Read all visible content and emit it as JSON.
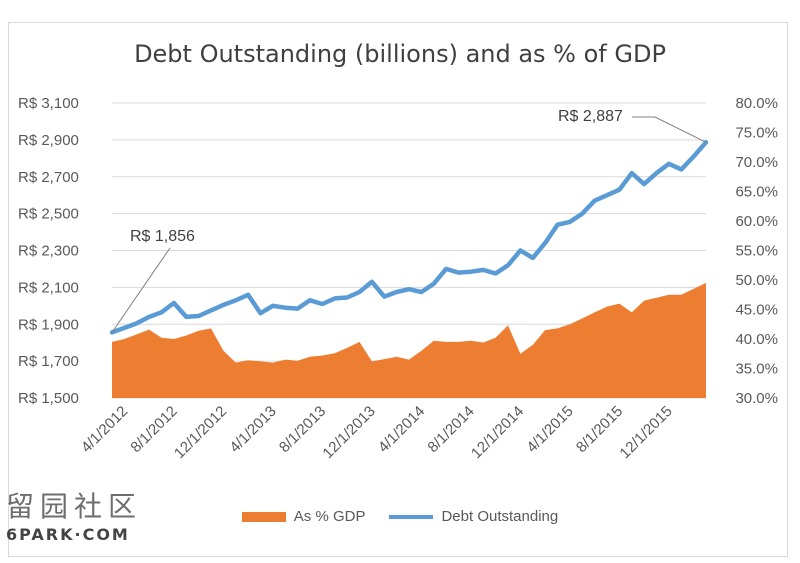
{
  "chart_data": {
    "type": "line",
    "title": "Debt Outstanding (billions) and as % of GDP",
    "x_tick_labels": [
      "4/1/2012",
      "8/1/2012",
      "12/1/2012",
      "4/1/2013",
      "8/1/2013",
      "12/1/2013",
      "4/1/2014",
      "8/1/2014",
      "12/1/2014",
      "4/1/2015",
      "8/1/2015",
      "12/1/2015"
    ],
    "y_left": {
      "ticks": [
        "R$ 1,500",
        "R$ 1,700",
        "R$ 1,900",
        "R$ 2,100",
        "R$ 2,300",
        "R$ 2,500",
        "R$ 2,700",
        "R$ 2,900",
        "R$ 3,100"
      ],
      "min": 1500,
      "max": 3100
    },
    "y_right": {
      "ticks": [
        "30.0%",
        "35.0%",
        "40.0%",
        "45.0%",
        "50.0%",
        "55.0%",
        "60.0%",
        "65.0%",
        "70.0%",
        "75.0%",
        "80.0%"
      ],
      "min": 30,
      "max": 80
    },
    "x": [
      "3/1/2012",
      "4/1/2012",
      "5/1/2012",
      "6/1/2012",
      "7/1/2012",
      "8/1/2012",
      "9/1/2012",
      "10/1/2012",
      "11/1/2012",
      "12/1/2012",
      "1/1/2013",
      "2/1/2013",
      "3/1/2013",
      "4/1/2013",
      "5/1/2013",
      "6/1/2013",
      "7/1/2013",
      "8/1/2013",
      "9/1/2013",
      "10/1/2013",
      "11/1/2013",
      "12/1/2013",
      "1/1/2014",
      "2/1/2014",
      "3/1/2014",
      "4/1/2014",
      "5/1/2014",
      "6/1/2014",
      "7/1/2014",
      "8/1/2014",
      "9/1/2014",
      "10/1/2014",
      "11/1/2014",
      "12/1/2014",
      "1/1/2015",
      "2/1/2015",
      "3/1/2015",
      "4/1/2015",
      "5/1/2015",
      "6/1/2015",
      "7/1/2015",
      "8/1/2015",
      "9/1/2015",
      "10/1/2015",
      "11/1/2015",
      "12/1/2015",
      "1/1/2016",
      "2/1/2016",
      "3/1/2016"
    ],
    "series": [
      {
        "name": "Debt Outstanding",
        "axis": "left",
        "color": "#5b9bd5",
        "values": [
          1856,
          1880,
          1905,
          1940,
          1965,
          2015,
          1940,
          1945,
          1975,
          2005,
          2030,
          2060,
          1960,
          2000,
          1990,
          1985,
          2030,
          2010,
          2040,
          2045,
          2075,
          2130,
          2050,
          2075,
          2090,
          2075,
          2120,
          2200,
          2180,
          2185,
          2195,
          2175,
          2220,
          2300,
          2260,
          2340,
          2440,
          2455,
          2500,
          2570,
          2600,
          2630,
          2720,
          2660,
          2720,
          2770,
          2740,
          2810,
          2887
        ]
      },
      {
        "name": "As % GDP",
        "axis": "right",
        "color": "#ed7d31",
        "values": [
          39.5,
          40.0,
          40.8,
          41.6,
          40.2,
          40.0,
          40.6,
          41.4,
          41.8,
          38.0,
          36.0,
          36.4,
          36.2,
          36.0,
          36.5,
          36.3,
          37.0,
          37.2,
          37.6,
          38.5,
          39.5,
          36.2,
          36.6,
          37.0,
          36.5,
          38.0,
          39.7,
          39.5,
          39.5,
          39.7,
          39.4,
          40.2,
          42.3,
          37.5,
          39.0,
          41.5,
          41.8,
          42.5,
          43.5,
          44.5,
          45.5,
          46.0,
          44.5,
          46.5,
          47.0,
          47.5,
          47.5,
          48.5,
          49.5
        ]
      }
    ],
    "annotations": [
      {
        "text": "R$ 1,856",
        "index": 0
      },
      {
        "text": "R$ 2,887",
        "index": 48
      }
    ],
    "legend": [
      "As % GDP",
      "Debt Outstanding"
    ],
    "legend_position": "bottom",
    "grid": true
  },
  "watermark": {
    "cn": "留园社区",
    "en": "6PARK·COM"
  }
}
